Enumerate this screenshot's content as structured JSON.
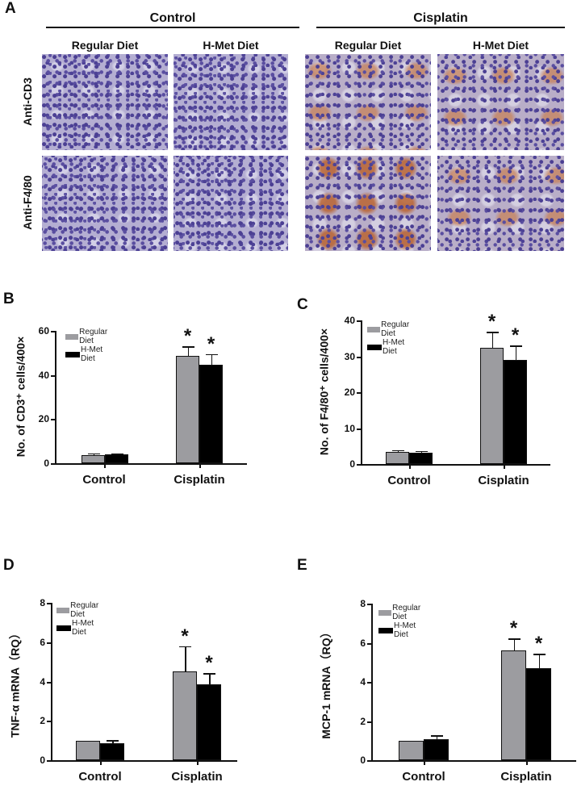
{
  "figure": {
    "panel_a": {
      "letter": "A",
      "groups": [
        {
          "label": "Control",
          "subs": [
            "Regular Diet",
            "H-Met Diet"
          ]
        },
        {
          "label": "Cisplatin",
          "subs": [
            "Regular Diet",
            "H-Met Diet"
          ]
        }
      ],
      "rows": [
        "Anti-CD3",
        "Anti-F4/80"
      ],
      "images": [
        {
          "row": "Anti-CD3",
          "group": "Control",
          "diet": "Regular Diet",
          "stain": "none"
        },
        {
          "row": "Anti-CD3",
          "group": "Control",
          "diet": "H-Met Diet",
          "stain": "none"
        },
        {
          "row": "Anti-CD3",
          "group": "Cisplatin",
          "diet": "Regular Diet",
          "stain": "brown"
        },
        {
          "row": "Anti-CD3",
          "group": "Cisplatin",
          "diet": "H-Met Diet",
          "stain": "brown"
        },
        {
          "row": "Anti-F4/80",
          "group": "Control",
          "diet": "Regular Diet",
          "stain": "none"
        },
        {
          "row": "Anti-F4/80",
          "group": "Control",
          "diet": "H-Met Diet",
          "stain": "none"
        },
        {
          "row": "Anti-F4/80",
          "group": "Cisplatin",
          "diet": "Regular Diet",
          "stain": "brown-heavy"
        },
        {
          "row": "Anti-F4/80",
          "group": "Cisplatin",
          "diet": "H-Met Diet",
          "stain": "brown"
        }
      ]
    },
    "colors": {
      "regular": "#9c9ca0",
      "hmet": "#000000"
    }
  },
  "chart_data": [
    {
      "panel": "B",
      "type": "bar",
      "title": "",
      "xlabel": "",
      "ylabel": "No. of CD3⁺ cells/400×",
      "ylim": [
        0,
        60
      ],
      "yticks": [
        0,
        20,
        40,
        60
      ],
      "categories": [
        "Control",
        "Cisplatin"
      ],
      "legend": [
        "Regular Diet",
        "H-Met Diet"
      ],
      "legend_position": "upper-left",
      "series": [
        {
          "name": "Regular Diet",
          "values": [
            3.5,
            48.5
          ],
          "errors": [
            1.0,
            4.5
          ]
        },
        {
          "name": "H-Met Diet",
          "values": [
            4.0,
            44.5
          ],
          "errors": [
            0.5,
            5.0
          ]
        }
      ],
      "annotations": [
        {
          "category": "Cisplatin",
          "series": "Regular Diet",
          "text": "*"
        },
        {
          "category": "Cisplatin",
          "series": "H-Met Diet",
          "text": "*"
        }
      ]
    },
    {
      "panel": "C",
      "type": "bar",
      "title": "",
      "xlabel": "",
      "ylabel": "No. of F4/80⁺ cells/400×",
      "ylim": [
        0,
        40
      ],
      "yticks": [
        0,
        10,
        20,
        30,
        40
      ],
      "categories": [
        "Control",
        "Cisplatin"
      ],
      "legend": [
        "Regular Diet",
        "H-Met Diet"
      ],
      "legend_position": "upper-left",
      "series": [
        {
          "name": "Regular Diet",
          "values": [
            3.3,
            32.4
          ],
          "errors": [
            0.6,
            4.4
          ]
        },
        {
          "name": "H-Met Diet",
          "values": [
            3.1,
            28.9
          ],
          "errors": [
            0.6,
            4.1
          ]
        }
      ],
      "annotations": [
        {
          "category": "Cisplatin",
          "series": "Regular Diet",
          "text": "*"
        },
        {
          "category": "Cisplatin",
          "series": "H-Met Diet",
          "text": "*"
        }
      ]
    },
    {
      "panel": "D",
      "type": "bar",
      "title": "",
      "xlabel": "",
      "ylabel": "TNF-α mRNA（RQ）",
      "ylim": [
        0,
        8
      ],
      "yticks": [
        0,
        2,
        4,
        6,
        8
      ],
      "categories": [
        "Control",
        "Cisplatin"
      ],
      "legend": [
        "Regular Diet",
        "H-Met Diet"
      ],
      "legend_position": "upper-left",
      "series": [
        {
          "name": "Regular Diet",
          "values": [
            1.0,
            4.5
          ],
          "errors": [
            0.0,
            1.3
          ]
        },
        {
          "name": "H-Met Diet",
          "values": [
            0.86,
            3.86
          ],
          "errors": [
            0.15,
            0.56
          ]
        }
      ],
      "annotations": [
        {
          "category": "Cisplatin",
          "series": "Regular Diet",
          "text": "*"
        },
        {
          "category": "Cisplatin",
          "series": "H-Met Diet",
          "text": "*"
        }
      ]
    },
    {
      "panel": "E",
      "type": "bar",
      "title": "",
      "xlabel": "",
      "ylabel": "MCP-1 mRNA（RQ）",
      "ylim": [
        0,
        8
      ],
      "yticks": [
        0,
        2,
        4,
        6,
        8
      ],
      "categories": [
        "Control",
        "Cisplatin"
      ],
      "legend": [
        "Regular Diet",
        "H-Met Diet"
      ],
      "legend_position": "upper-left",
      "series": [
        {
          "name": "Regular Diet",
          "values": [
            1.0,
            5.62
          ],
          "errors": [
            0.0,
            0.6
          ]
        },
        {
          "name": "H-Met Diet",
          "values": [
            1.07,
            4.7
          ],
          "errors": [
            0.2,
            0.74
          ]
        }
      ],
      "annotations": [
        {
          "category": "Cisplatin",
          "series": "Regular Diet",
          "text": "*"
        },
        {
          "category": "Cisplatin",
          "series": "H-Met Diet",
          "text": "*"
        }
      ]
    }
  ]
}
